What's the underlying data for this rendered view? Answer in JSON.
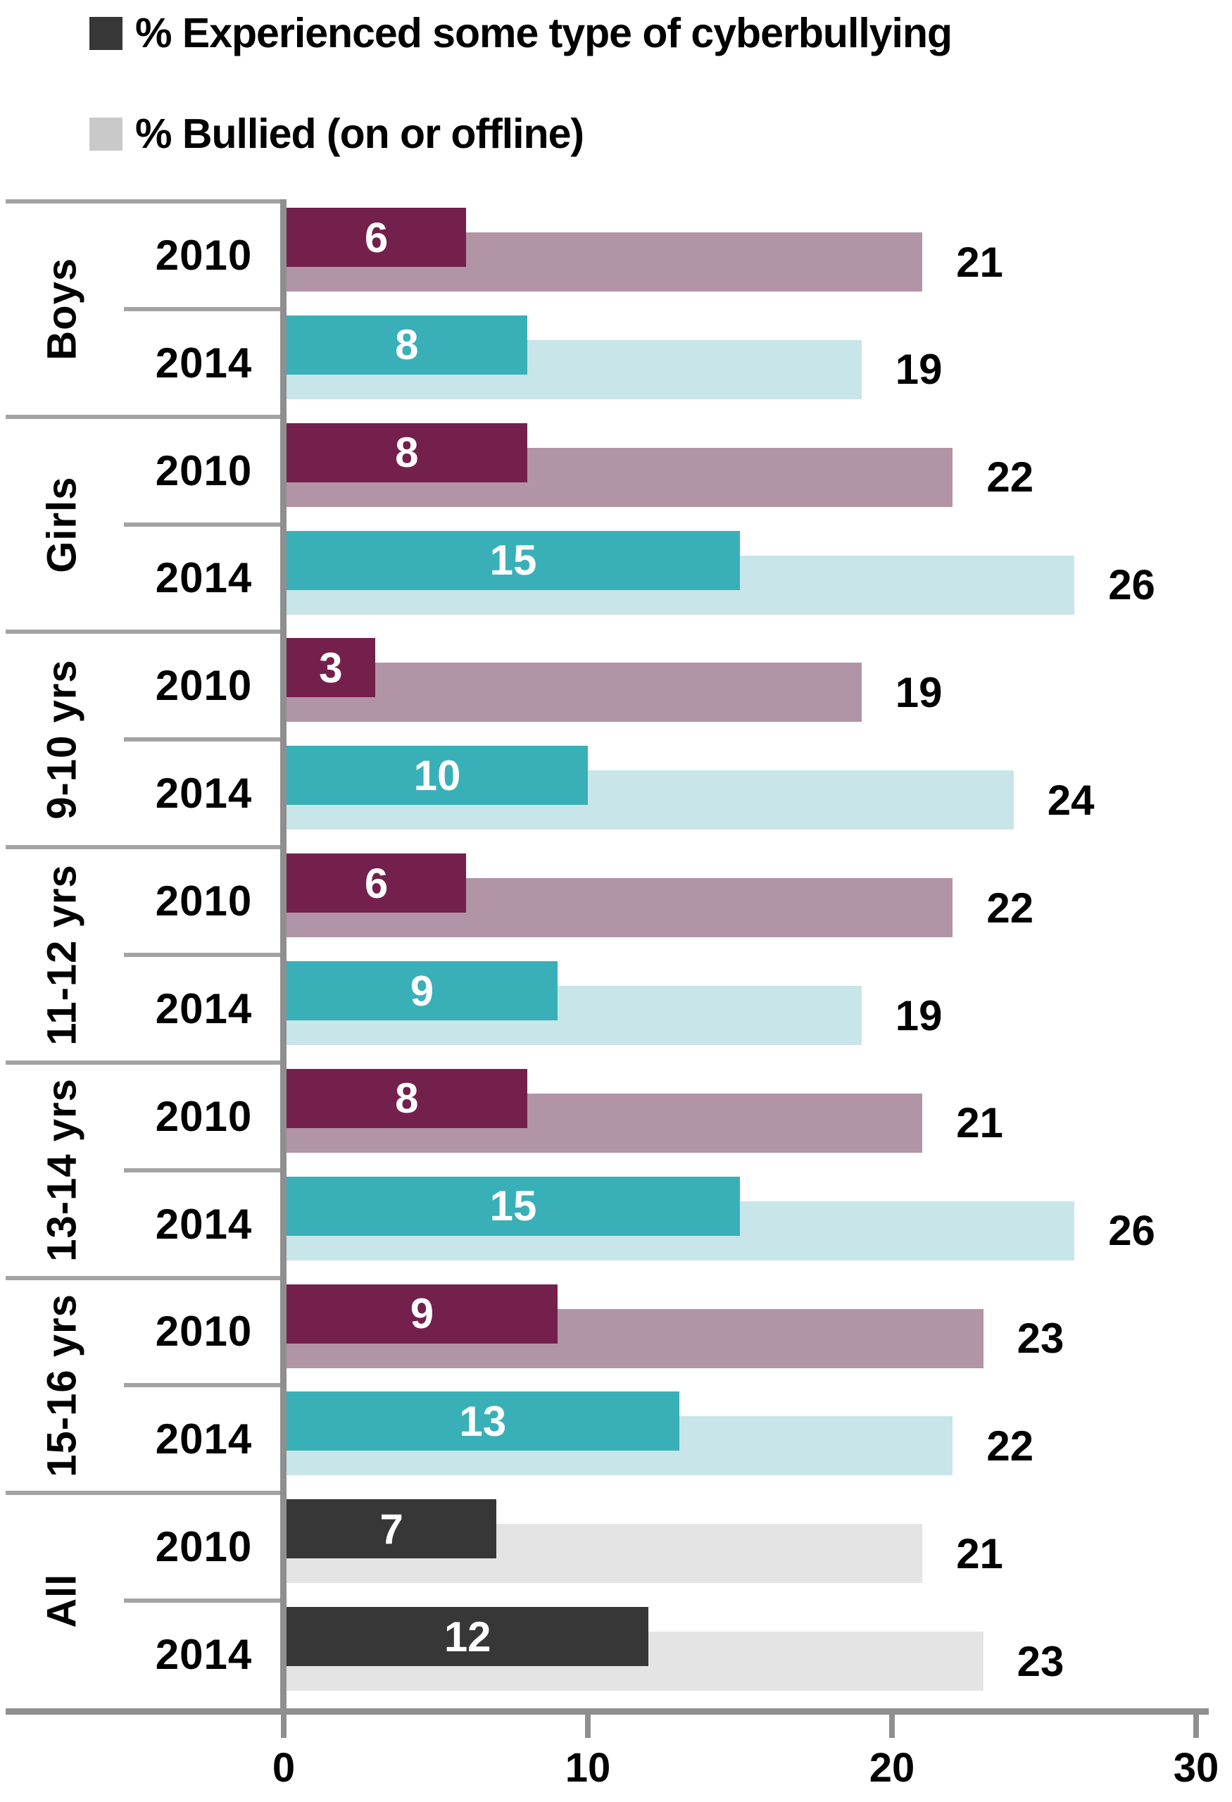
{
  "legend": {
    "items": [
      {
        "label": "% Experienced some type of cyberbullying",
        "swatch_color": "#373737"
      },
      {
        "label": "% Bullied (on or offline)",
        "swatch_color": "#C9C9C9"
      }
    ]
  },
  "palette": {
    "plum": {
      "dark": "#74204C",
      "light": "#B194A6"
    },
    "teal": {
      "dark": "#39B0B7",
      "light": "#C8E5E9"
    },
    "gray": {
      "dark": "#373737",
      "light": "#E4E4E4"
    },
    "axis_color": "#8F8F8F",
    "divider_color": "#A3A3A3",
    "background": "#FFFFFF"
  },
  "chart_data": {
    "type": "bar",
    "orientation": "horizontal",
    "series": [
      {
        "name": "% Experienced some type of cyberbullying"
      },
      {
        "name": "% Bullied (on or offline)"
      }
    ],
    "xlim": [
      0,
      30
    ],
    "x_ticks": [
      "0",
      "10",
      "20",
      "30"
    ],
    "legend_position": "top-left",
    "grid": false,
    "groups": [
      {
        "label": "Boys",
        "rows": [
          {
            "year": "2010",
            "palette": "plum",
            "cyberbullied": 6,
            "bullied": 21
          },
          {
            "year": "2014",
            "palette": "teal",
            "cyberbullied": 8,
            "bullied": 19
          }
        ]
      },
      {
        "label": "Girls",
        "rows": [
          {
            "year": "2010",
            "palette": "plum",
            "cyberbullied": 8,
            "bullied": 22
          },
          {
            "year": "2014",
            "palette": "teal",
            "cyberbullied": 15,
            "bullied": 26
          }
        ]
      },
      {
        "label": "9-10 yrs",
        "rows": [
          {
            "year": "2010",
            "palette": "plum",
            "cyberbullied": 3,
            "bullied": 19
          },
          {
            "year": "2014",
            "palette": "teal",
            "cyberbullied": 10,
            "bullied": 24
          }
        ]
      },
      {
        "label": "11-12 yrs",
        "rows": [
          {
            "year": "2010",
            "palette": "plum",
            "cyberbullied": 6,
            "bullied": 22
          },
          {
            "year": "2014",
            "palette": "teal",
            "cyberbullied": 9,
            "bullied": 19
          }
        ]
      },
      {
        "label": "13-14 yrs",
        "rows": [
          {
            "year": "2010",
            "palette": "plum",
            "cyberbullied": 8,
            "bullied": 21
          },
          {
            "year": "2014",
            "palette": "teal",
            "cyberbullied": 15,
            "bullied": 26
          }
        ]
      },
      {
        "label": "15-16 yrs",
        "rows": [
          {
            "year": "2010",
            "palette": "plum",
            "cyberbullied": 9,
            "bullied": 23
          },
          {
            "year": "2014",
            "palette": "teal",
            "cyberbullied": 13,
            "bullied": 22
          }
        ]
      },
      {
        "label": "All",
        "rows": [
          {
            "year": "2010",
            "palette": "gray",
            "cyberbullied": 7,
            "bullied": 21
          },
          {
            "year": "2014",
            "palette": "gray",
            "cyberbullied": 12,
            "bullied": 23
          }
        ]
      }
    ]
  }
}
